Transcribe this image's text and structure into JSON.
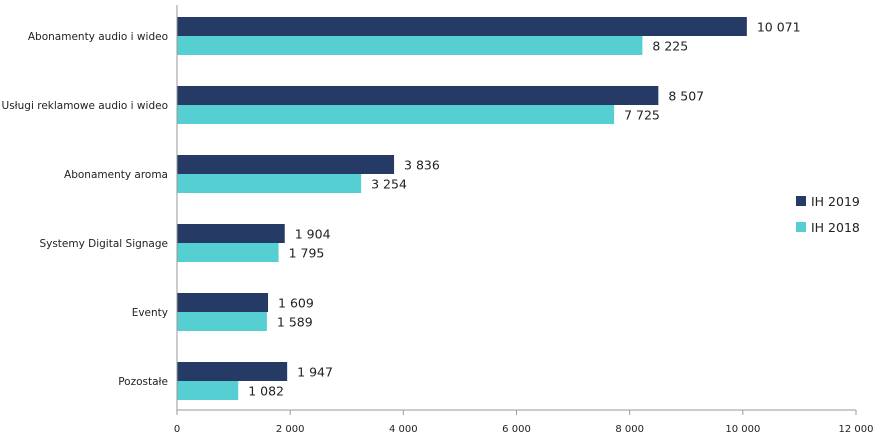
{
  "chart_data": {
    "type": "bar",
    "orientation": "horizontal",
    "title": "",
    "xlabel": "",
    "ylabel": "",
    "xlim": [
      0,
      12000
    ],
    "xticks": [
      0,
      2000,
      4000,
      6000,
      8000,
      10000,
      12000
    ],
    "xtick_labels": [
      "0",
      "2 000",
      "4 000",
      "6 000",
      "8 000",
      "10 000",
      "12 000"
    ],
    "grid": false,
    "legend_position": "right",
    "categories": [
      "Abonamenty audio i wideo",
      "Usługi reklamowe audio i wideo",
      "Abonamenty aroma",
      "Systemy Digital Signage",
      "Eventy",
      "Pozostałe"
    ],
    "series": [
      {
        "name": "IH 2019",
        "color": "#263a66",
        "values": [
          10071,
          8507,
          3836,
          1904,
          1609,
          1947
        ],
        "labels": [
          "10 071",
          "8 507",
          "3 836",
          "1 904",
          "1 609",
          "1 947"
        ]
      },
      {
        "name": "IH 2018",
        "color": "#55cfd2",
        "values": [
          8225,
          7725,
          3254,
          1795,
          1589,
          1082
        ],
        "labels": [
          "8 225",
          "7 725",
          "3 254",
          "1 795",
          "1 589",
          "1 082"
        ]
      }
    ]
  }
}
